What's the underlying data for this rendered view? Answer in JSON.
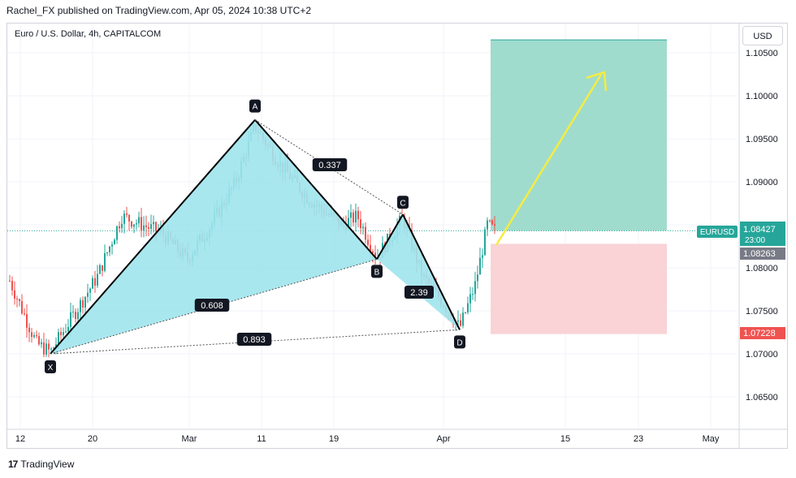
{
  "header": {
    "published": "Rachel_FX published on TradingView.com, Apr 05, 2024 10:38 UTC+2"
  },
  "symbol_title": "Euro / U.S. Dollar, 4h, CAPITALCOM",
  "currency_button": "USD",
  "footer": {
    "brand": "TradingView",
    "logo": "17"
  },
  "colors": {
    "up": "#26a69a",
    "down": "#ef5350",
    "pattern_fill": "#a0e4ed",
    "profit_zone": "#8fd6c4",
    "loss_zone": "#f9d3d6",
    "arrow": "#f5ec42"
  },
  "chart_data": {
    "type": "candlestick",
    "title": "Euro / U.S. Dollar, 4h, CAPITALCOM",
    "y_axis": {
      "ticks": [
        "1.10500",
        "1.10000",
        "1.09500",
        "1.09000",
        "1.08500",
        "1.08000",
        "1.07500",
        "1.07000",
        "1.06500"
      ],
      "range": [
        1.0622,
        1.1078
      ]
    },
    "x_axis": {
      "ticks": [
        "12",
        "20",
        "Mar",
        "11",
        "19",
        "Apr",
        "15",
        "23",
        "May"
      ]
    },
    "price_labels": [
      {
        "name": "EURUSD",
        "value": "1.08427",
        "sub": "23:00",
        "color": "#26a69a"
      },
      {
        "value": "1.08263",
        "color": "#787b86"
      },
      {
        "value": "1.07228",
        "color": "#ef5350"
      }
    ],
    "pattern": {
      "points": [
        {
          "label": "X",
          "price": 1.07
        },
        {
          "label": "A",
          "price": 1.0972
        },
        {
          "label": "B",
          "price": 1.081
        },
        {
          "label": "C",
          "price": 1.0862
        },
        {
          "label": "D",
          "price": 1.0728
        }
      ],
      "ratios": [
        {
          "label": "0.337"
        },
        {
          "label": "0.608"
        },
        {
          "label": "2.39"
        },
        {
          "label": "0.893"
        }
      ]
    },
    "position": {
      "target": 1.1065,
      "entry": 1.0843,
      "stop": 1.0723
    }
  }
}
